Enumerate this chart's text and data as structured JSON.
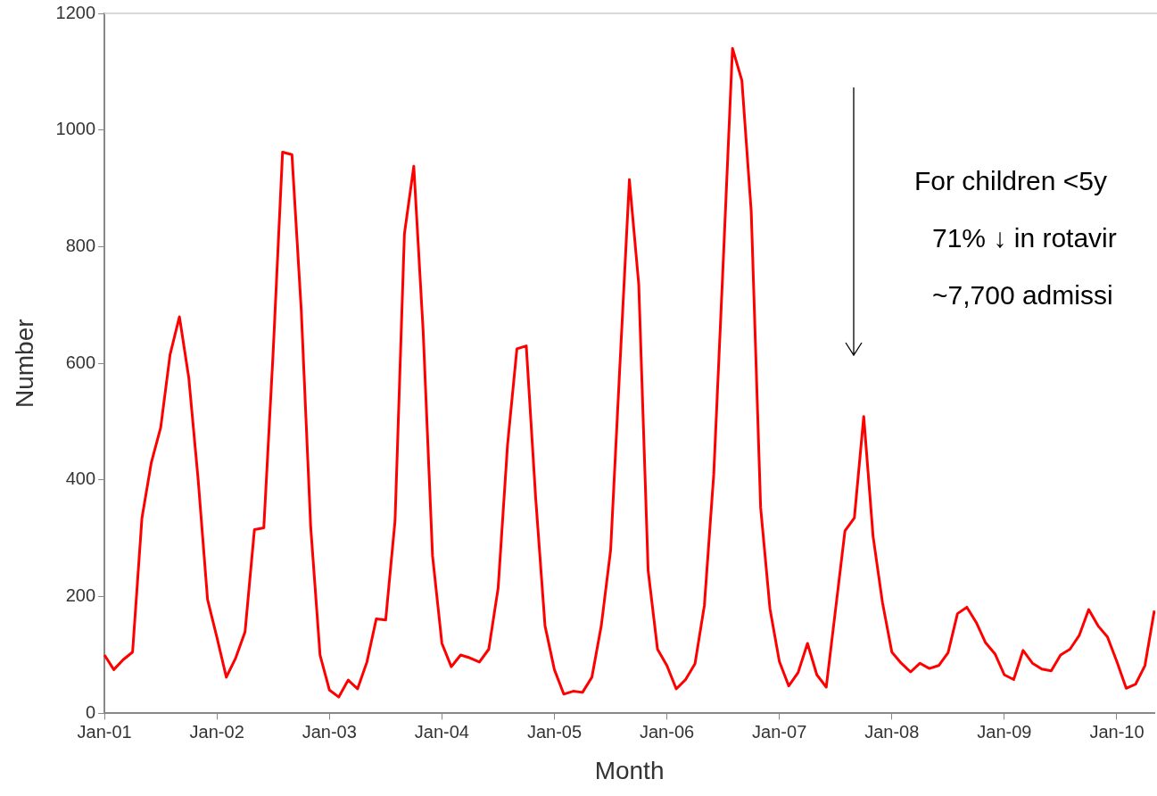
{
  "chart_data": {
    "type": "line",
    "xlabel": "Month",
    "ylabel": "Number",
    "categories": [
      "Jan-01",
      null,
      null,
      null,
      null,
      null,
      null,
      null,
      null,
      null,
      null,
      null,
      "Jan-02",
      null,
      null,
      null,
      null,
      null,
      null,
      null,
      null,
      null,
      null,
      null,
      "Jan-03",
      null,
      null,
      null,
      null,
      null,
      null,
      null,
      null,
      null,
      null,
      null,
      "Jan-04",
      null,
      null,
      null,
      null,
      null,
      null,
      null,
      null,
      null,
      null,
      null,
      "Jan-05",
      null,
      null,
      null,
      null,
      null,
      null,
      null,
      null,
      null,
      null,
      null,
      "Jan-06",
      null,
      null,
      null,
      null,
      null,
      null,
      null,
      null,
      null,
      null,
      null,
      "Jan-07",
      null,
      null,
      null,
      null,
      null,
      null,
      null,
      null,
      null,
      null,
      null,
      "Jan-08",
      null,
      null,
      null,
      null,
      null,
      null,
      null,
      null,
      null,
      null,
      null,
      "Jan-09",
      null,
      null,
      null,
      null,
      null,
      null,
      null,
      null,
      null,
      null,
      null,
      "Jan-10",
      null,
      null,
      null,
      null
    ],
    "series": [
      {
        "color": "#ff0000",
        "values": [
          100,
          75,
          92,
          105,
          335,
          430,
          490,
          615,
          680,
          575,
          400,
          195,
          130,
          62,
          95,
          140,
          315,
          318,
          620,
          962,
          958,
          690,
          320,
          100,
          40,
          28,
          57,
          42,
          88,
          162,
          160,
          330,
          822,
          938,
          655,
          270,
          120,
          80,
          100,
          95,
          88,
          110,
          215,
          460,
          625,
          630,
          370,
          150,
          75,
          33,
          38,
          36,
          62,
          150,
          280,
          600,
          915,
          735,
          245,
          110,
          82,
          42,
          58,
          85,
          185,
          410,
          770,
          1140,
          1085,
          860,
          353,
          179,
          89,
          47,
          70,
          120,
          66,
          45,
          179,
          313,
          335,
          509,
          303,
          190,
          105,
          86,
          71,
          86,
          77,
          82,
          104,
          171,
          182,
          156,
          121,
          102,
          66,
          58,
          108,
          86,
          76,
          73,
          100,
          110,
          134,
          178,
          150,
          131,
          89,
          43,
          50,
          82,
          176
        ]
      }
    ],
    "ylim": [
      0,
      1200
    ],
    "yticks": [
      0,
      200,
      400,
      600,
      800,
      1000,
      1200
    ],
    "grid": false,
    "legend": false,
    "marker": "none",
    "line_style": "solid",
    "annotations": [
      "For children <5y",
      "71% ↓ in rotavir",
      "~7,700 admissi"
    ]
  }
}
